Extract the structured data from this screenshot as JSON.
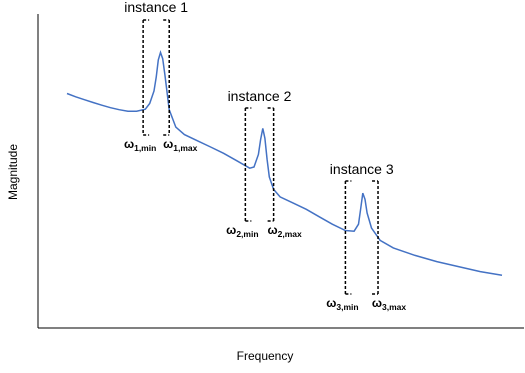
{
  "chart_data": {
    "type": "line",
    "xlabel": "Frequency",
    "ylabel": "Magnitude",
    "series": [
      {
        "color": "#4472c4",
        "points": [
          [
            0.0,
            0.765
          ],
          [
            0.02,
            0.752
          ],
          [
            0.04,
            0.74
          ],
          [
            0.06,
            0.729
          ],
          [
            0.08,
            0.718
          ],
          [
            0.1,
            0.708
          ],
          [
            0.12,
            0.7
          ],
          [
            0.14,
            0.694
          ],
          [
            0.16,
            0.694
          ],
          [
            0.18,
            0.702
          ],
          [
            0.19,
            0.725
          ],
          [
            0.2,
            0.775
          ],
          [
            0.205,
            0.83
          ],
          [
            0.21,
            0.9
          ],
          [
            0.215,
            0.93
          ],
          [
            0.22,
            0.905
          ],
          [
            0.225,
            0.84
          ],
          [
            0.235,
            0.7
          ],
          [
            0.25,
            0.63
          ],
          [
            0.27,
            0.6
          ],
          [
            0.3,
            0.575
          ],
          [
            0.33,
            0.55
          ],
          [
            0.36,
            0.525
          ],
          [
            0.39,
            0.495
          ],
          [
            0.42,
            0.465
          ],
          [
            0.43,
            0.47
          ],
          [
            0.44,
            0.52
          ],
          [
            0.445,
            0.58
          ],
          [
            0.45,
            0.625
          ],
          [
            0.455,
            0.585
          ],
          [
            0.46,
            0.5
          ],
          [
            0.465,
            0.43
          ],
          [
            0.475,
            0.38
          ],
          [
            0.49,
            0.35
          ],
          [
            0.52,
            0.325
          ],
          [
            0.55,
            0.3
          ],
          [
            0.58,
            0.27
          ],
          [
            0.61,
            0.24
          ],
          [
            0.64,
            0.215
          ],
          [
            0.66,
            0.212
          ],
          [
            0.67,
            0.24
          ],
          [
            0.675,
            0.3
          ],
          [
            0.68,
            0.365
          ],
          [
            0.685,
            0.34
          ],
          [
            0.69,
            0.285
          ],
          [
            0.7,
            0.225
          ],
          [
            0.72,
            0.175
          ],
          [
            0.75,
            0.145
          ],
          [
            0.8,
            0.115
          ],
          [
            0.85,
            0.09
          ],
          [
            0.9,
            0.07
          ],
          [
            0.95,
            0.05
          ],
          [
            1.0,
            0.035
          ]
        ]
      }
    ],
    "annotations": [
      {
        "title": "instance 1",
        "x_min": 0.175,
        "x_max": 0.235,
        "min_label": {
          "main": "ω",
          "sub": "1,min"
        },
        "max_label": {
          "main": "ω",
          "sub": "1,max"
        }
      },
      {
        "title": "instance 2",
        "x_min": 0.41,
        "x_max": 0.475,
        "min_label": {
          "main": "ω",
          "sub": "2,min"
        },
        "max_label": {
          "main": "ω",
          "sub": "2,max"
        }
      },
      {
        "title": "instance 3",
        "x_min": 0.64,
        "x_max": 0.715,
        "min_label": {
          "main": "ω",
          "sub": "3,min"
        },
        "max_label": {
          "main": "ω",
          "sub": "3,max"
        }
      }
    ],
    "grid": false,
    "legend": "none"
  }
}
